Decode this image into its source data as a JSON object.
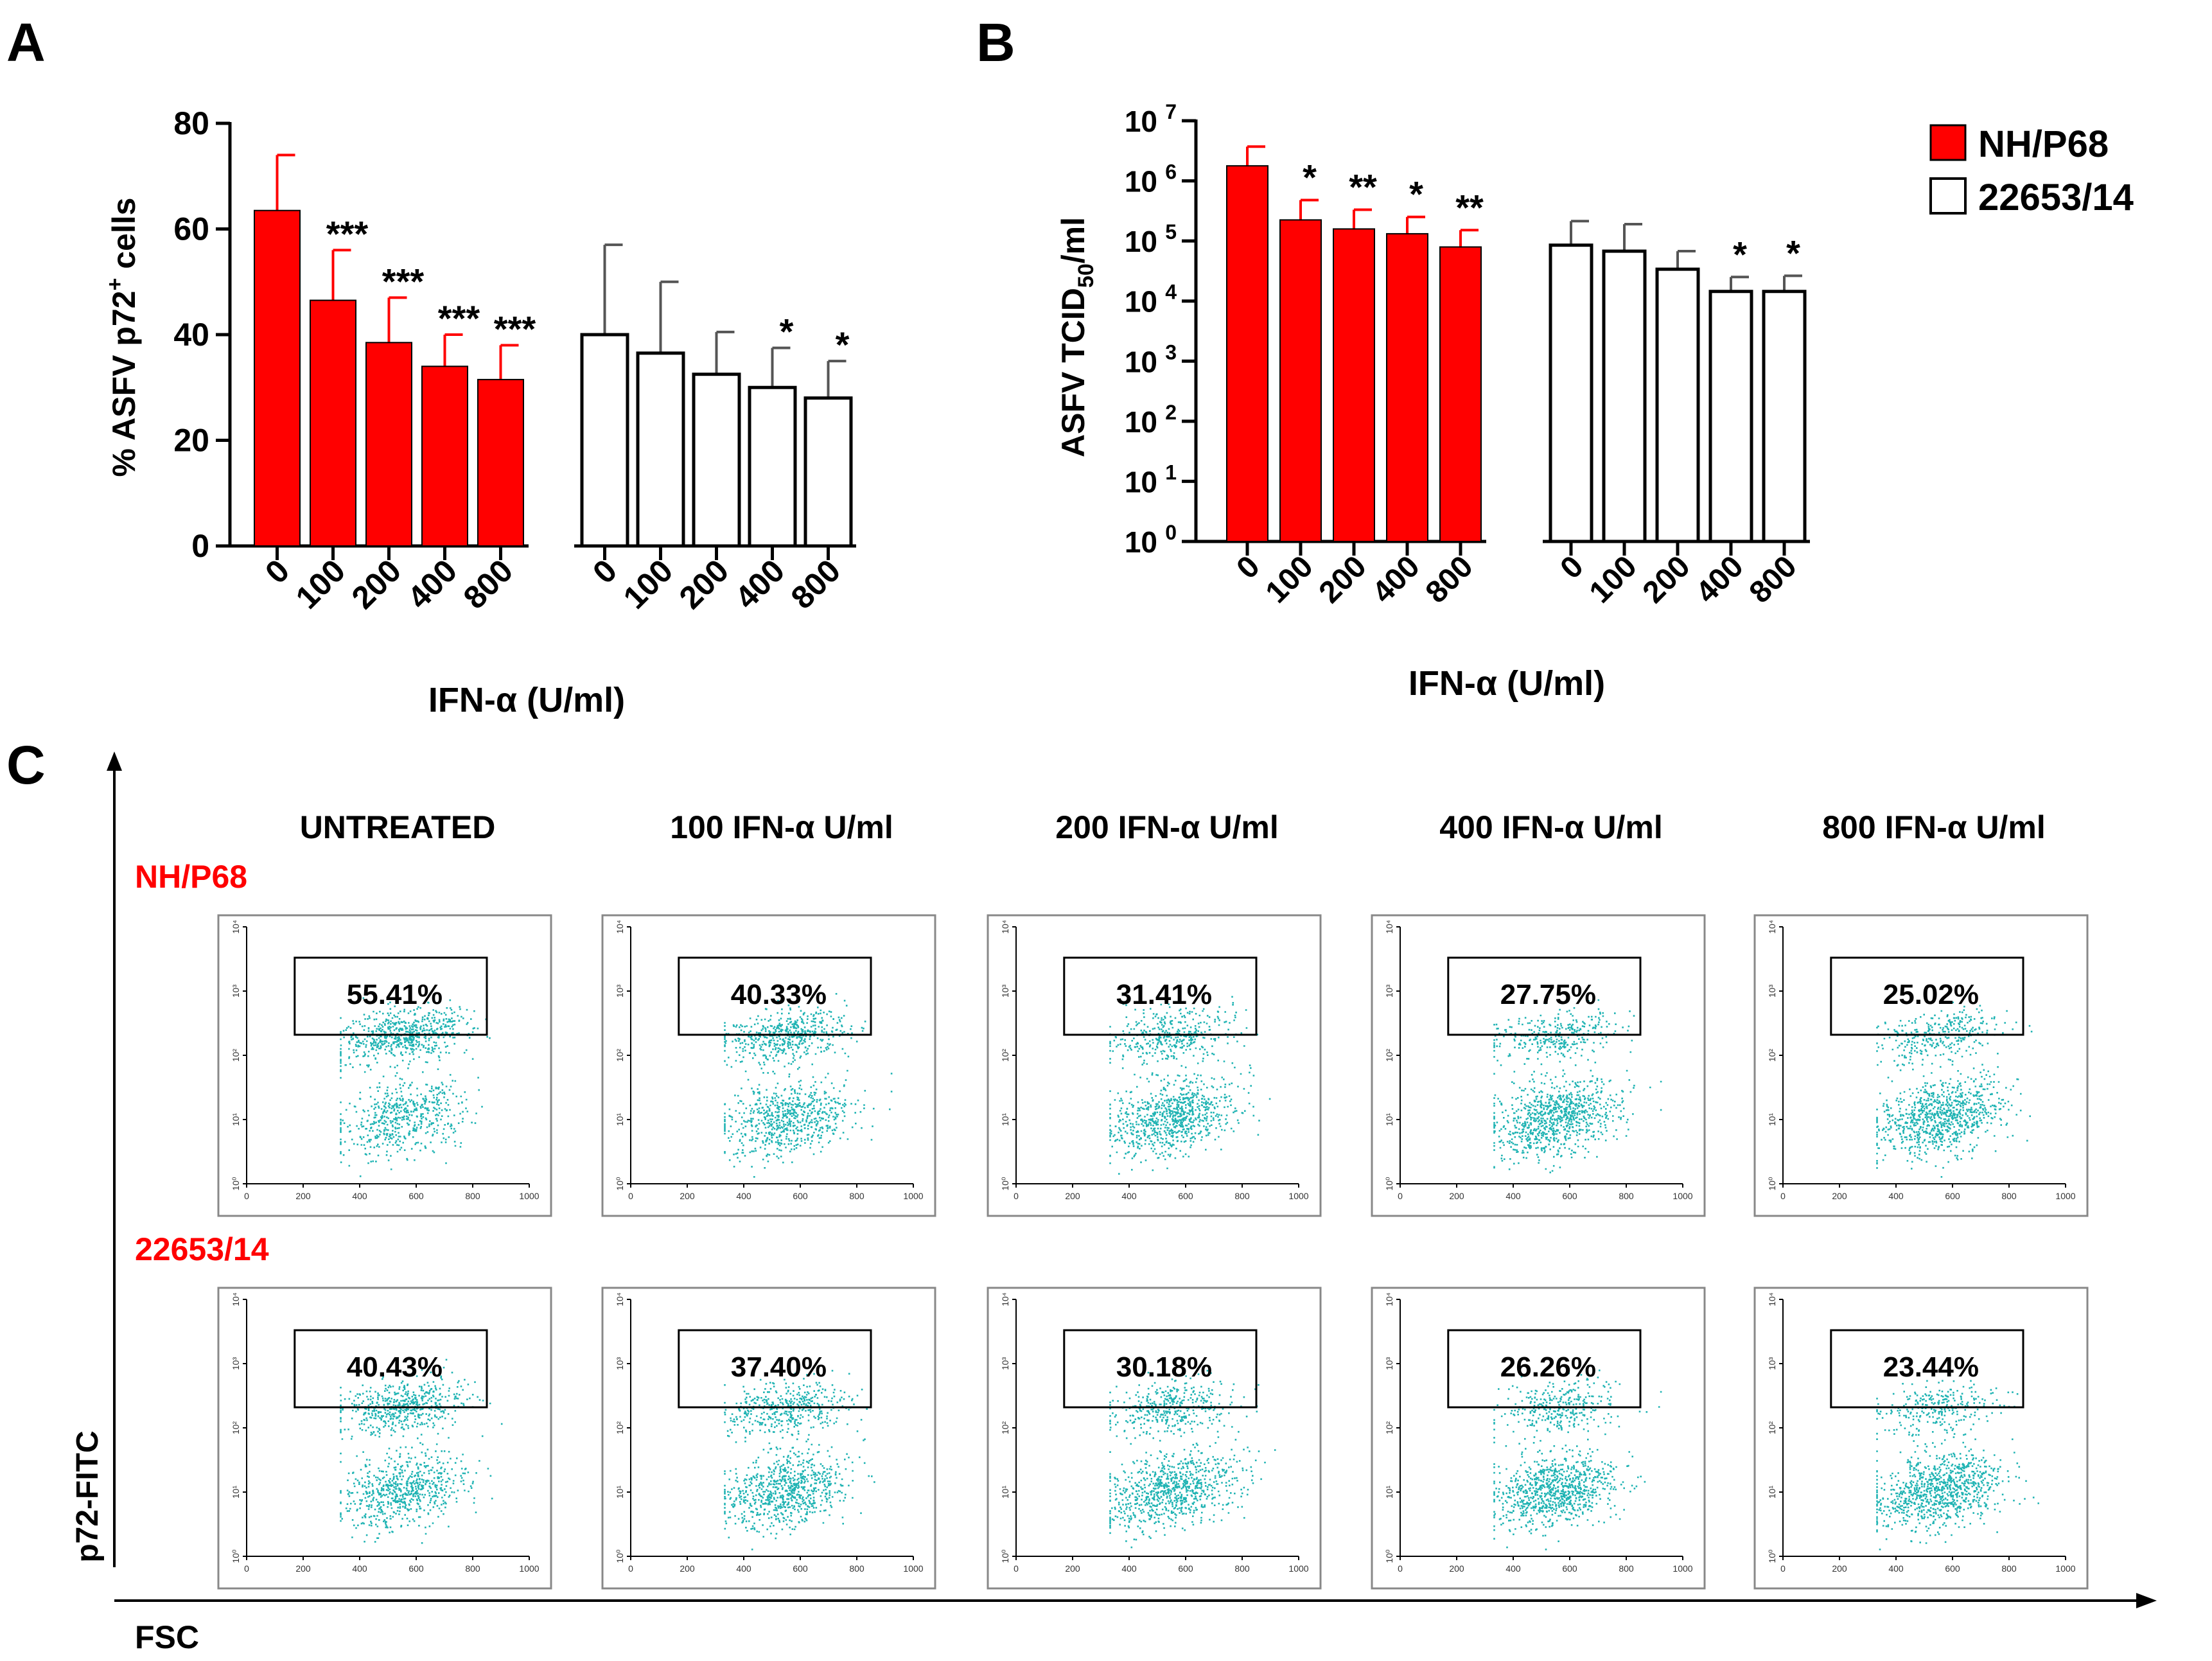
{
  "colors": {
    "nh_p68": "#ff0000",
    "strain_22653": "#ffffff",
    "axis": "#000000",
    "dots": "#1fb3b3",
    "row_label": "#ff0000"
  },
  "panel_labels": {
    "a": "A",
    "b": "B",
    "c": "C"
  },
  "legend": {
    "series_1": "NH/P68",
    "series_2": "22653/14"
  },
  "chart_data": [
    {
      "type": "bar",
      "panel": "A",
      "title": "",
      "ylabel_main": "% ASFV p72",
      "ylabel_sup": "+",
      "ylabel_tail": " cells",
      "xlabel": "IFN-α (U/ml)",
      "ylim": [
        0,
        80
      ],
      "yticks": [
        0,
        20,
        40,
        60,
        80
      ],
      "categories": [
        "0",
        "100",
        "200",
        "400",
        "800"
      ],
      "series": [
        {
          "name": "NH/P68",
          "values": [
            63.5,
            46.5,
            38.5,
            34,
            31.5
          ],
          "errors": [
            10.5,
            9.5,
            8.5,
            6,
            6.5
          ],
          "significance": [
            "",
            "***",
            "***",
            "***",
            "***"
          ]
        },
        {
          "name": "22653/14",
          "values": [
            40,
            36.5,
            32.5,
            30,
            28
          ],
          "errors": [
            17,
            13.5,
            8,
            7.5,
            7
          ],
          "significance": [
            "",
            "",
            "",
            "*",
            "*"
          ]
        }
      ]
    },
    {
      "type": "bar",
      "panel": "B",
      "scale": "log",
      "title": "",
      "ylabel_main": "ASFV TCID",
      "ylabel_sub": "50",
      "ylabel_tail": "/ml",
      "xlabel": "IFN-α (U/ml)",
      "ylim_exponent": [
        0,
        7
      ],
      "ytick_exponents": [
        "0",
        "1",
        "2",
        "3",
        "4",
        "5",
        "6",
        "7"
      ],
      "ytick_base": "10",
      "categories": [
        "0",
        "100",
        "200",
        "400",
        "800"
      ],
      "series": [
        {
          "name": "NH/P68",
          "log_values": [
            6.25,
            5.35,
            5.2,
            5.12,
            4.9
          ],
          "log_errors": [
            0.32,
            0.33,
            0.32,
            0.28,
            0.28
          ],
          "significance": [
            "",
            "*",
            "**",
            "*",
            "**"
          ]
        },
        {
          "name": "22653/14",
          "log_values": [
            4.93,
            4.83,
            4.53,
            4.16,
            4.16
          ],
          "log_errors": [
            0.4,
            0.45,
            0.3,
            0.24,
            0.26
          ],
          "significance": [
            "",
            "",
            "",
            "*",
            "*"
          ]
        }
      ]
    },
    {
      "type": "scatter",
      "panel": "C",
      "x_axis_label": "FSC",
      "y_axis_label": "p72-FITC",
      "column_titles": [
        "UNTREATED",
        "100 IFN-α U/ml",
        "200 IFN-α U/ml",
        "400 IFN-α U/ml",
        "800 IFN-α U/ml"
      ],
      "row_labels": [
        "NH/P68",
        "22653/14"
      ],
      "percentages": [
        [
          "55.41%",
          "40.33%",
          "31.41%",
          "27.75%",
          "25.02%"
        ],
        [
          "40.43%",
          "37.40%",
          "30.18%",
          "26.26%",
          "23.44%"
        ]
      ],
      "xticks": [
        "0",
        "200",
        "400",
        "600",
        "800",
        "1000"
      ],
      "yticks": [
        "10⁰",
        "10¹",
        "10²",
        "10³",
        "10⁴"
      ]
    }
  ]
}
